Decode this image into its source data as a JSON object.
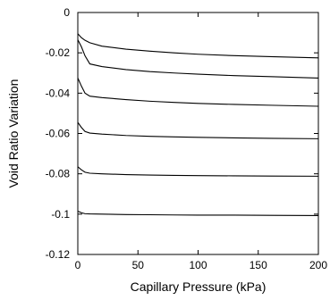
{
  "chart_data": {
    "type": "line",
    "title": "",
    "xlabel": "Capillary Pressure (kPa)",
    "ylabel": "Void Ratio Variation",
    "xlim": [
      0,
      200
    ],
    "ylim": [
      -0.12,
      0
    ],
    "xticks": [
      0,
      50,
      100,
      150,
      200
    ],
    "yticks": [
      0,
      -0.02,
      -0.04,
      -0.06,
      -0.08,
      -0.1,
      -0.12
    ],
    "xtick_labels": [
      "0",
      "50",
      "100",
      "150",
      "200"
    ],
    "ytick_labels": [
      "0",
      "-0.02",
      "-0.04",
      "-0.06",
      "-0.08",
      "-0.1",
      "-0.12"
    ],
    "grid": false,
    "legend": "none",
    "series": [
      {
        "x": [
          0,
          3,
          6,
          10,
          20,
          40,
          60,
          80,
          100,
          130,
          160,
          200
        ],
        "values": [
          -0.0105,
          -0.0125,
          -0.0138,
          -0.015,
          -0.0167,
          -0.0182,
          -0.0192,
          -0.02,
          -0.0207,
          -0.0214,
          -0.0219,
          -0.0225
        ]
      },
      {
        "x": [
          0,
          3,
          6,
          10,
          20,
          40,
          60,
          80,
          100,
          130,
          160,
          200
        ],
        "values": [
          -0.0135,
          -0.017,
          -0.0215,
          -0.0255,
          -0.0268,
          -0.0283,
          -0.0293,
          -0.03,
          -0.0306,
          -0.0313,
          -0.0318,
          -0.0325
        ]
      },
      {
        "x": [
          0,
          3,
          6,
          10,
          20,
          40,
          60,
          80,
          100,
          130,
          160,
          200
        ],
        "values": [
          -0.0325,
          -0.0365,
          -0.04,
          -0.0415,
          -0.0422,
          -0.0432,
          -0.044,
          -0.0446,
          -0.0451,
          -0.0456,
          -0.046,
          -0.0465
        ]
      },
      {
        "x": [
          0,
          3,
          6,
          10,
          20,
          40,
          60,
          80,
          100,
          130,
          160,
          200
        ],
        "values": [
          -0.0545,
          -0.057,
          -0.059,
          -0.0598,
          -0.0603,
          -0.061,
          -0.0614,
          -0.0617,
          -0.0619,
          -0.0622,
          -0.0624,
          -0.0626
        ]
      },
      {
        "x": [
          0,
          3,
          6,
          10,
          20,
          40,
          60,
          80,
          100,
          130,
          160,
          200
        ],
        "values": [
          -0.0765,
          -0.078,
          -0.0792,
          -0.0797,
          -0.08,
          -0.0804,
          -0.0806,
          -0.0808,
          -0.0809,
          -0.081,
          -0.0811,
          -0.0812
        ]
      },
      {
        "x": [
          0,
          3,
          6,
          10,
          20,
          40,
          60,
          80,
          100,
          130,
          160,
          200
        ],
        "values": [
          -0.0985,
          -0.0993,
          -0.0998,
          -0.0999,
          -0.1,
          -0.1002,
          -0.1003,
          -0.1004,
          -0.1005,
          -0.1005,
          -0.1006,
          -0.1007
        ]
      }
    ]
  }
}
